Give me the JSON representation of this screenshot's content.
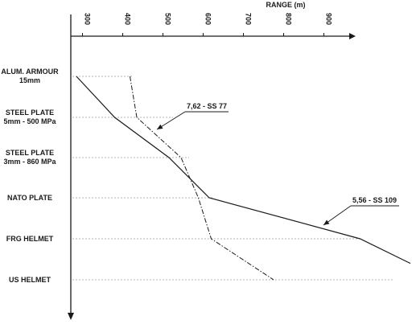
{
  "chart_data": {
    "type": "line",
    "title": "",
    "xlabel": "RANGE (m)",
    "ylabel": "",
    "xlim": [
      285,
      1125
    ],
    "x_ticks": [
      "300",
      "400",
      "500",
      "600",
      "700",
      "800",
      "900"
    ],
    "x_tick_values": [
      300,
      400,
      500,
      600,
      700,
      800,
      900
    ],
    "categories": [
      [
        "ALUM. ARMOUR",
        "15mm"
      ],
      [
        "STEEL PLATE",
        "5mm - 500 MPa"
      ],
      [
        "STEEL PLATE",
        "3mm - 860 MPa"
      ],
      [
        "NATO PLATE"
      ],
      [
        "FRG HELMET"
      ],
      [
        "US HELMET"
      ]
    ],
    "grid": "dotted horizontal lines at each category",
    "series": [
      {
        "name": "5,56 - SS 109",
        "style": "solid",
        "points": [
          {
            "x": 295,
            "cat": 0
          },
          {
            "x": 390,
            "cat": 1
          },
          {
            "x": 525,
            "cat": 2
          },
          {
            "x": 625,
            "cat": 3
          },
          {
            "x": 1000,
            "cat": 4
          },
          {
            "x": 1125,
            "cat": 4.6
          }
        ]
      },
      {
        "name": "7,62 - SS 77",
        "style": "dash-dot",
        "points": [
          {
            "x": 428,
            "cat": 0
          },
          {
            "x": 445,
            "cat": 1
          },
          {
            "x": 555,
            "cat": 2
          },
          {
            "x": 598,
            "cat": 3
          },
          {
            "x": 630,
            "cat": 4
          },
          {
            "x": 785,
            "cat": 5
          }
        ]
      }
    ],
    "annotations": [
      {
        "text": "7,62 - SS 77",
        "series": 1
      },
      {
        "text": "5,56 - SS 109",
        "series": 0
      }
    ],
    "colors": {
      "ink": "#1a1a1a",
      "grid": "#9a9a9a"
    }
  }
}
